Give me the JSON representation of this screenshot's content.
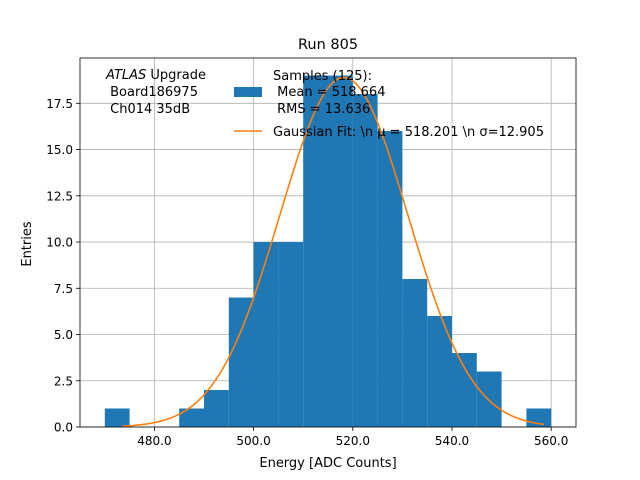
{
  "chart_data": {
    "type": "bar",
    "title": "Run 805",
    "xlabel": "Energy [ADC Counts]",
    "ylabel": "Entries",
    "xlim": [
      465,
      565
    ],
    "ylim": [
      0,
      19.95
    ],
    "xticks": [
      480.0,
      500.0,
      520.0,
      540.0,
      560.0
    ],
    "xtick_labels": [
      "480.0",
      "500.0",
      "520.0",
      "540.0",
      "560.0"
    ],
    "yticks": [
      0,
      2.5,
      5,
      7.5,
      10,
      12.5,
      15,
      17.5
    ],
    "ytick_labels": [
      "0.0",
      "2.5",
      "5.0",
      "7.5",
      "10.0",
      "12.5",
      "15.0",
      "17.5"
    ],
    "grid": true,
    "bar_color": "#1f77b4",
    "fit_color": "#ff7f0e",
    "bins": [
      {
        "x0": 470,
        "x1": 475,
        "count": 1
      },
      {
        "x0": 485,
        "x1": 490,
        "count": 1
      },
      {
        "x0": 490,
        "x1": 495,
        "count": 2
      },
      {
        "x0": 495,
        "x1": 500,
        "count": 7
      },
      {
        "x0": 500,
        "x1": 505,
        "count": 10
      },
      {
        "x0": 505,
        "x1": 510,
        "count": 10
      },
      {
        "x0": 510,
        "x1": 515,
        "count": 19
      },
      {
        "x0": 515,
        "x1": 520,
        "count": 19
      },
      {
        "x0": 520,
        "x1": 525,
        "count": 18
      },
      {
        "x0": 525,
        "x1": 530,
        "count": 16
      },
      {
        "x0": 530,
        "x1": 535,
        "count": 8
      },
      {
        "x0": 535,
        "x1": 540,
        "count": 6
      },
      {
        "x0": 540,
        "x1": 545,
        "count": 4
      },
      {
        "x0": 545,
        "x1": 550,
        "count": 3
      },
      {
        "x0": 555,
        "x1": 560,
        "count": 1
      }
    ],
    "fit": {
      "mu": 518.201,
      "sigma": 12.905,
      "amplitude": 18.9,
      "x_from": 473.5,
      "x_to": 558.5
    },
    "legend": {
      "placement": "top-right",
      "hist_label_lines": [
        "Samples (125):",
        " Mean = 518.664",
        " RMS = 13.636"
      ],
      "fit_label": "Gaussian Fit: \\n μ = 518.201 \\n σ=12.905"
    },
    "annotation": {
      "atlas_italic": "ATLAS",
      "atlas_rest": " Upgrade",
      "line2": " Board186975",
      "line3": " Ch014 35dB"
    }
  }
}
